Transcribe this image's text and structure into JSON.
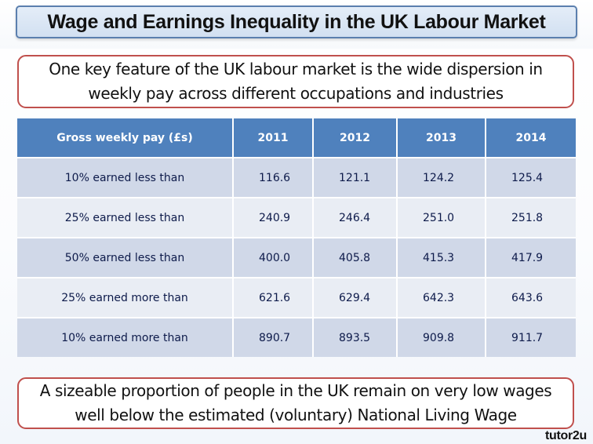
{
  "title": "Wage and Earnings Inequality in the UK Labour Market",
  "intro_callout": {
    "line1": "One key feature of the UK labour market is the wide dispersion in",
    "line2": "weekly pay across different occupations and industries"
  },
  "table": {
    "headers": [
      "Gross weekly pay (£s)",
      "2011",
      "2012",
      "2013",
      "2014"
    ],
    "rows": [
      {
        "label": "10% earned less than",
        "values": [
          "116.6",
          "121.1",
          "124.2",
          "125.4"
        ]
      },
      {
        "label": "25% earned less than",
        "values": [
          "240.9",
          "246.4",
          "251.0",
          "251.8"
        ]
      },
      {
        "label": "50% earned less than",
        "values": [
          "400.0",
          "405.8",
          "415.3",
          "417.9"
        ]
      },
      {
        "label": "25% earned more than",
        "values": [
          "621.6",
          "629.4",
          "642.3",
          "643.6"
        ]
      },
      {
        "label": "10% earned more than",
        "values": [
          "890.7",
          "893.5",
          "909.8",
          "911.7"
        ]
      }
    ]
  },
  "conclusion_callout": {
    "line1": "A sizeable proportion of people in the UK remain on very low wages",
    "line2": "well below the estimated (voluntary) National Living Wage"
  },
  "logo": "tutor2u",
  "colors": {
    "header_fill": "#4f81bd",
    "row_band_dark": "#d0d8e8",
    "row_band_light": "#e9edf4",
    "callout_border": "#c0504d",
    "title_border": "#5b7fae"
  }
}
